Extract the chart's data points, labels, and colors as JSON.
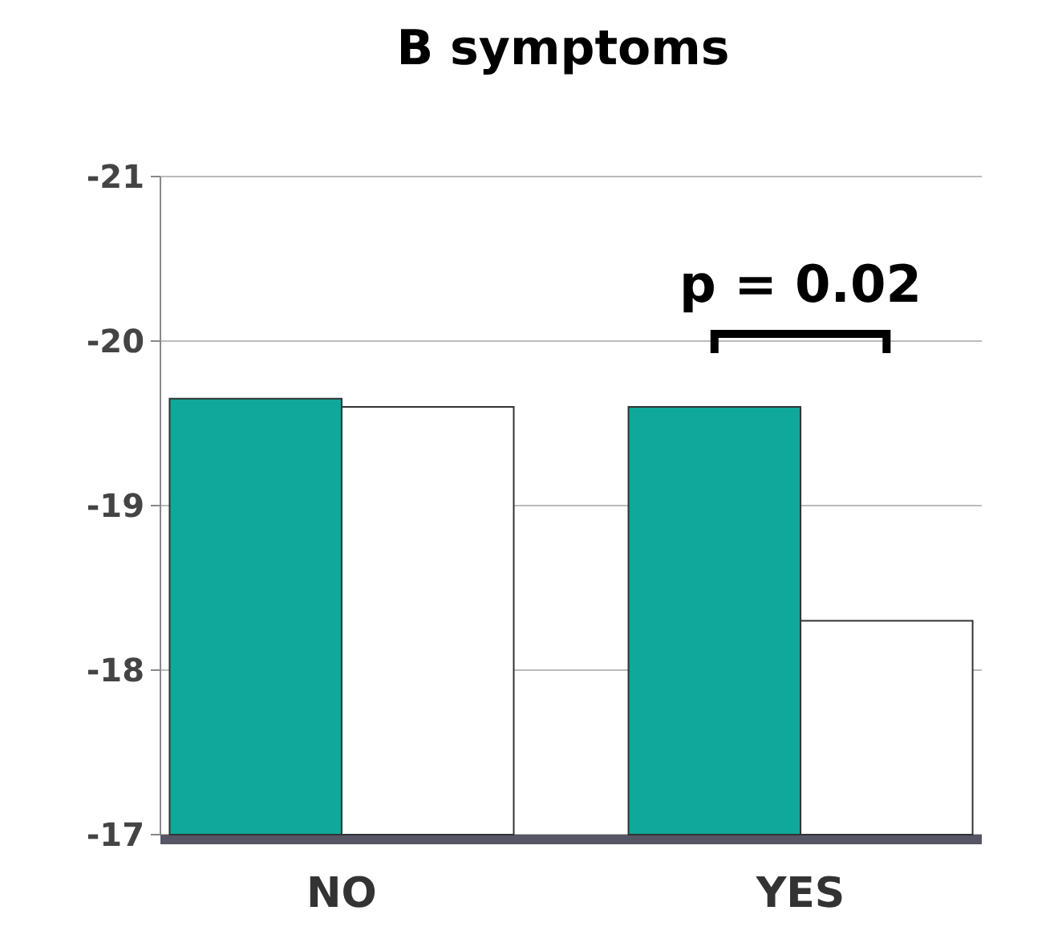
{
  "chart_data": {
    "type": "bar",
    "title": "B symptoms",
    "categories": [
      "NO",
      "YES"
    ],
    "series": [
      {
        "color": "#0fa89a",
        "values": [
          -19.65,
          -19.6
        ]
      },
      {
        "color": "#ffffff",
        "values": [
          -19.6,
          -18.3
        ]
      }
    ],
    "ylim": [
      -17,
      -21
    ],
    "yticks": [
      -21,
      -20,
      -19,
      -18,
      -17
    ],
    "grid": "y",
    "annotations": [
      "p = 0.02"
    ]
  }
}
